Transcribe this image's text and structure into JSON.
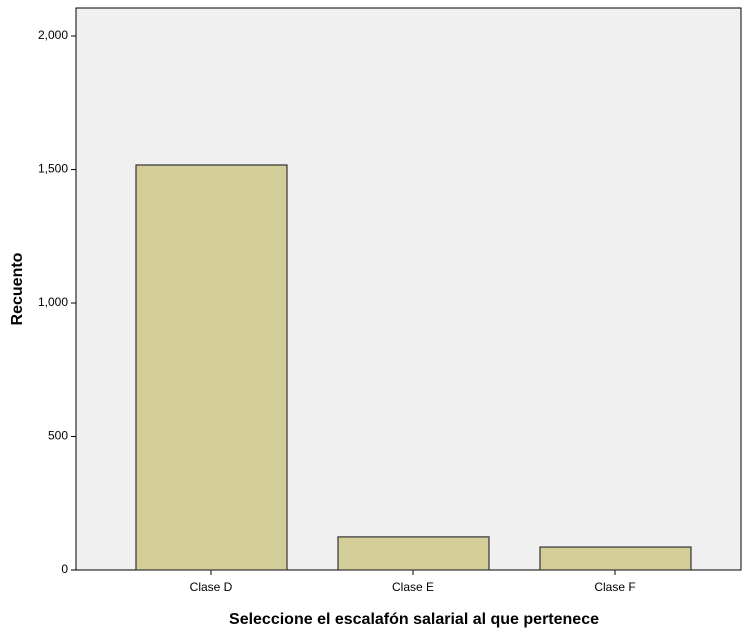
{
  "chart_data": {
    "type": "bar",
    "x_label": "Seleccione el escalafón salarial al que pertenece",
    "y_label": "Recuento",
    "categories": [
      "Clase D",
      "Clase E",
      "Clase F"
    ],
    "values": [
      1517,
      124,
      86
    ],
    "color": "#d3ce97",
    "ylim": [
      0,
      2105
    ],
    "yticks": [
      0,
      500,
      {
        "value": 1000,
        "label": "1,000"
      },
      {
        "value": 1500,
        "label": "1,500"
      },
      {
        "value": 2000,
        "label": "2,000"
      }
    ]
  }
}
